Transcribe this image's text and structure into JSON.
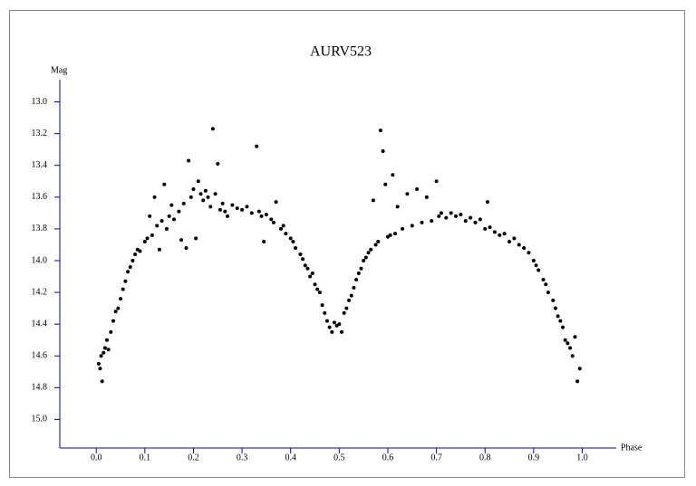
{
  "chart_data": {
    "type": "scatter",
    "title": "AURV523",
    "y_label": "Mag",
    "x_label": "Phase",
    "color": "#000000",
    "axis_color": "#0000cc",
    "y_inverted": true,
    "xlim": [
      -0.075,
      1.07
    ],
    "ylim": [
      15.18,
      12.86
    ],
    "xticks": [
      {
        "value": 0,
        "label": "0.0"
      },
      0.1,
      0.2,
      0.3,
      0.4,
      0.5,
      0.6,
      0.7,
      0.8,
      0.9,
      {
        "value": 1,
        "label": "1.0"
      }
    ],
    "yticks": [
      {
        "value": 13,
        "label": "13.0"
      },
      13.2,
      13.4,
      13.6,
      13.8,
      {
        "value": 14,
        "label": "14.0"
      },
      14.2,
      14.4,
      14.6,
      14.8,
      {
        "value": 15,
        "label": "15.0"
      }
    ],
    "x": [
      0.005,
      0.008,
      0.01,
      0.012,
      0.015,
      0.018,
      0.022,
      0.025,
      0.03,
      0.035,
      0.04,
      0.045,
      0.05,
      0.055,
      0.06,
      0.065,
      0.07,
      0.075,
      0.08,
      0.085,
      0.09,
      0.1,
      0.105,
      0.11,
      0.115,
      0.12,
      0.125,
      0.13,
      0.135,
      0.14,
      0.145,
      0.15,
      0.155,
      0.16,
      0.17,
      0.175,
      0.18,
      0.185,
      0.19,
      0.195,
      0.2,
      0.205,
      0.21,
      0.215,
      0.22,
      0.225,
      0.23,
      0.235,
      0.24,
      0.245,
      0.25,
      0.255,
      0.26,
      0.265,
      0.27,
      0.28,
      0.29,
      0.3,
      0.31,
      0.32,
      0.33,
      0.335,
      0.34,
      0.345,
      0.35,
      0.36,
      0.365,
      0.37,
      0.38,
      0.385,
      0.39,
      0.4,
      0.405,
      0.41,
      0.42,
      0.425,
      0.43,
      0.435,
      0.44,
      0.445,
      0.45,
      0.455,
      0.46,
      0.465,
      0.47,
      0.475,
      0.48,
      0.485,
      0.49,
      0.495,
      0.5,
      0.505,
      0.51,
      0.515,
      0.52,
      0.525,
      0.53,
      0.535,
      0.54,
      0.545,
      0.55,
      0.555,
      0.56,
      0.565,
      0.57,
      0.575,
      0.58,
      0.585,
      0.59,
      0.595,
      0.6,
      0.605,
      0.61,
      0.615,
      0.62,
      0.63,
      0.64,
      0.65,
      0.66,
      0.67,
      0.68,
      0.69,
      0.7,
      0.705,
      0.71,
      0.72,
      0.73,
      0.74,
      0.75,
      0.76,
      0.77,
      0.78,
      0.79,
      0.8,
      0.805,
      0.81,
      0.82,
      0.83,
      0.84,
      0.85,
      0.86,
      0.87,
      0.88,
      0.89,
      0.9,
      0.905,
      0.91,
      0.92,
      0.925,
      0.93,
      0.94,
      0.945,
      0.95,
      0.955,
      0.96,
      0.965,
      0.97,
      0.975,
      0.98,
      0.985,
      0.99,
      0.995
    ],
    "values": [
      14.65,
      14.68,
      14.6,
      14.76,
      14.58,
      14.55,
      14.5,
      14.56,
      14.45,
      14.38,
      14.32,
      14.3,
      14.24,
      14.18,
      14.13,
      14.07,
      14.04,
      14.0,
      13.96,
      13.93,
      13.94,
      13.88,
      13.86,
      13.72,
      13.84,
      13.6,
      13.78,
      13.93,
      13.75,
      13.52,
      13.8,
      13.72,
      13.65,
      13.74,
      13.69,
      13.87,
      13.64,
      13.92,
      13.37,
      13.6,
      13.55,
      13.86,
      13.5,
      13.58,
      13.62,
      13.56,
      13.6,
      13.66,
      13.17,
      13.58,
      13.39,
      13.68,
      13.64,
      13.69,
      13.72,
      13.65,
      13.67,
      13.68,
      13.66,
      13.7,
      13.28,
      13.69,
      13.72,
      13.88,
      13.71,
      13.74,
      13.76,
      13.63,
      13.8,
      13.78,
      13.83,
      13.86,
      13.88,
      13.92,
      13.96,
      13.99,
      14.03,
      14.05,
      14.1,
      14.08,
      14.15,
      14.18,
      14.2,
      14.28,
      14.33,
      14.38,
      14.42,
      14.45,
      14.39,
      14.41,
      14.4,
      14.45,
      14.33,
      14.3,
      14.25,
      14.22,
      14.17,
      14.12,
      14.08,
      14.05,
      14.0,
      13.98,
      13.95,
      13.93,
      13.62,
      13.9,
      13.88,
      13.18,
      13.31,
      13.52,
      13.85,
      13.84,
      13.46,
      13.83,
      13.66,
      13.8,
      13.58,
      13.78,
      13.55,
      13.76,
      13.6,
      13.75,
      13.5,
      13.72,
      13.7,
      13.73,
      13.7,
      13.72,
      13.71,
      13.75,
      13.73,
      13.76,
      13.74,
      13.8,
      13.63,
      13.79,
      13.82,
      13.84,
      13.83,
      13.88,
      13.86,
      13.9,
      13.92,
      13.95,
      14.0,
      14.03,
      14.06,
      14.12,
      14.15,
      14.2,
      14.25,
      14.3,
      14.35,
      14.38,
      14.42,
      14.5,
      14.52,
      14.55,
      14.6,
      14.48,
      14.76,
      14.68
    ]
  }
}
